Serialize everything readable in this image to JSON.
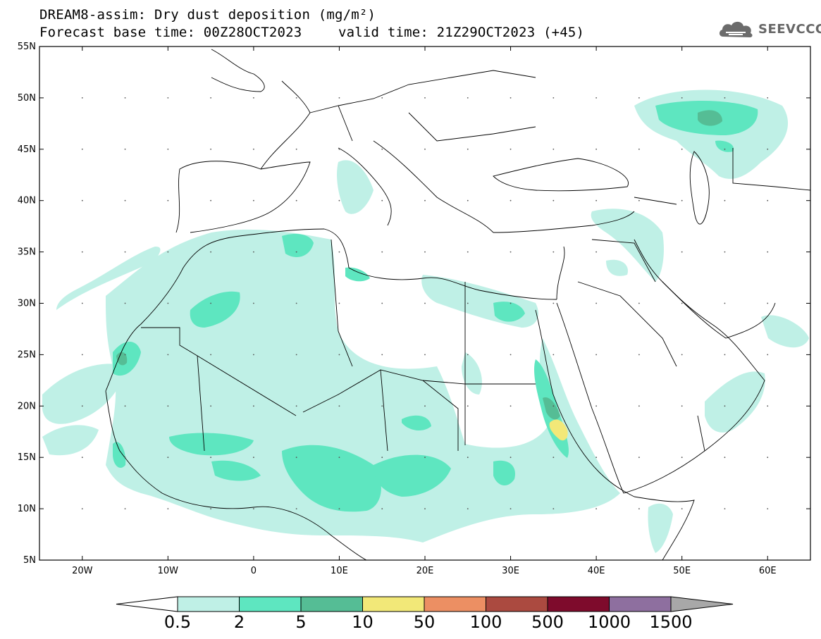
{
  "header": {
    "title_line1": "DREAM8-assim: Dry dust deposition (mg/m²)",
    "forecast_base": "Forecast base time: 00Z28OCT2023",
    "valid_time": "valid time: 21Z29OCT2023 (+45)"
  },
  "logo": {
    "icon": "cloud-logo-icon",
    "text": "SEEVCCC",
    "color": "#6b6b6b"
  },
  "map": {
    "lon_range": [
      -25,
      65
    ],
    "lat_range": [
      5,
      55
    ],
    "lat_ticks": [
      {
        "value": 55,
        "label": "55N"
      },
      {
        "value": 50,
        "label": "50N"
      },
      {
        "value": 45,
        "label": "45N"
      },
      {
        "value": 40,
        "label": "40N"
      },
      {
        "value": 35,
        "label": "35N"
      },
      {
        "value": 30,
        "label": "30N"
      },
      {
        "value": 25,
        "label": "25N"
      },
      {
        "value": 20,
        "label": "20N"
      },
      {
        "value": 15,
        "label": "15N"
      },
      {
        "value": 10,
        "label": "10N"
      },
      {
        "value": 5,
        "label": "5N"
      }
    ],
    "lon_ticks": [
      {
        "value": -20,
        "label": "20W"
      },
      {
        "value": -10,
        "label": "10W"
      },
      {
        "value": 0,
        "label": "0"
      },
      {
        "value": 10,
        "label": "10E"
      },
      {
        "value": 20,
        "label": "20E"
      },
      {
        "value": 30,
        "label": "30E"
      },
      {
        "value": 40,
        "label": "40E"
      },
      {
        "value": 50,
        "label": "50E"
      },
      {
        "value": 60,
        "label": "60E"
      }
    ]
  },
  "legend": {
    "colors": [
      "#bff0e6",
      "#5ee6c0",
      "#55bd95",
      "#f2e878",
      "#ec8f63",
      "#ab4a40",
      "#7e0b2c",
      "#8e6f9f"
    ],
    "labels": [
      "0.5",
      "2",
      "5",
      "10",
      "50",
      "100",
      "500",
      "1000",
      "1500"
    ],
    "under_color": "#ffffff",
    "over_color": "#a8a8a8"
  }
}
